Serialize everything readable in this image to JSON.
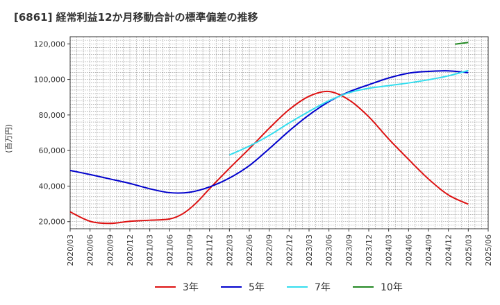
{
  "chart_data": {
    "type": "line",
    "title": "[6861]  経常利益12か月移動合計の標準偏差の推移",
    "ylabel": "(百万円)",
    "xlabel": "",
    "ylim": [
      16000,
      124000
    ],
    "yticks": [
      20000,
      40000,
      60000,
      80000,
      100000,
      120000
    ],
    "ytick_labels": [
      "20,000",
      "40,000",
      "60,000",
      "80,000",
      "100,000",
      "120,000"
    ],
    "x_range": [
      "2020/03",
      "2025/06"
    ],
    "xtick_labels": [
      "2020/03",
      "2020/06",
      "2020/09",
      "2020/12",
      "2021/03",
      "2021/06",
      "2021/09",
      "2021/12",
      "2022/03",
      "2022/06",
      "2022/09",
      "2022/12",
      "2023/03",
      "2023/06",
      "2023/09",
      "2023/12",
      "2024/03",
      "2024/06",
      "2024/09",
      "2024/12",
      "2025/03",
      "2025/06"
    ],
    "grid": true,
    "legend_position": "bottom",
    "series": [
      {
        "name": "3年",
        "color": "#dd1111",
        "x": [
          "2020/03",
          "2020/06",
          "2020/09",
          "2020/12",
          "2021/03",
          "2021/06",
          "2021/08",
          "2021/10",
          "2021/12",
          "2022/03",
          "2022/06",
          "2022/09",
          "2022/12",
          "2023/03",
          "2023/06",
          "2023/09",
          "2023/12",
          "2024/03",
          "2024/06",
          "2024/09",
          "2024/12",
          "2025/03"
        ],
        "values": [
          25500,
          20200,
          19000,
          20200,
          20800,
          21500,
          24500,
          30500,
          38500,
          50000,
          61000,
          72500,
          83000,
          90500,
          93200,
          88500,
          79000,
          66500,
          55000,
          44000,
          35000,
          29800
        ]
      },
      {
        "name": "5年",
        "color": "#0000cc",
        "x": [
          "2020/03",
          "2020/06",
          "2020/09",
          "2020/12",
          "2021/03",
          "2021/06",
          "2021/09",
          "2021/12",
          "2022/03",
          "2022/06",
          "2022/09",
          "2022/12",
          "2023/03",
          "2023/06",
          "2023/09",
          "2023/12",
          "2024/03",
          "2024/06",
          "2024/09",
          "2024/12",
          "2025/03"
        ],
        "values": [
          48800,
          46500,
          44000,
          41500,
          38500,
          36300,
          36500,
          39500,
          44500,
          51500,
          61000,
          71000,
          80000,
          87500,
          93000,
          97000,
          100800,
          103500,
          104500,
          104800,
          103800
        ]
      },
      {
        "name": "7年",
        "color": "#33ddee",
        "x": [
          "2022/03",
          "2022/06",
          "2022/09",
          "2022/12",
          "2023/03",
          "2023/06",
          "2023/09",
          "2023/12",
          "2024/03",
          "2024/06",
          "2024/09",
          "2024/12",
          "2025/03"
        ],
        "values": [
          57500,
          62500,
          68500,
          75500,
          82000,
          88000,
          92500,
          95000,
          96500,
          98000,
          99800,
          102000,
          105000
        ]
      },
      {
        "name": "10年",
        "color": "#228822",
        "x": [
          "2025/01",
          "2025/03"
        ],
        "values": [
          119800,
          120800
        ]
      }
    ]
  }
}
